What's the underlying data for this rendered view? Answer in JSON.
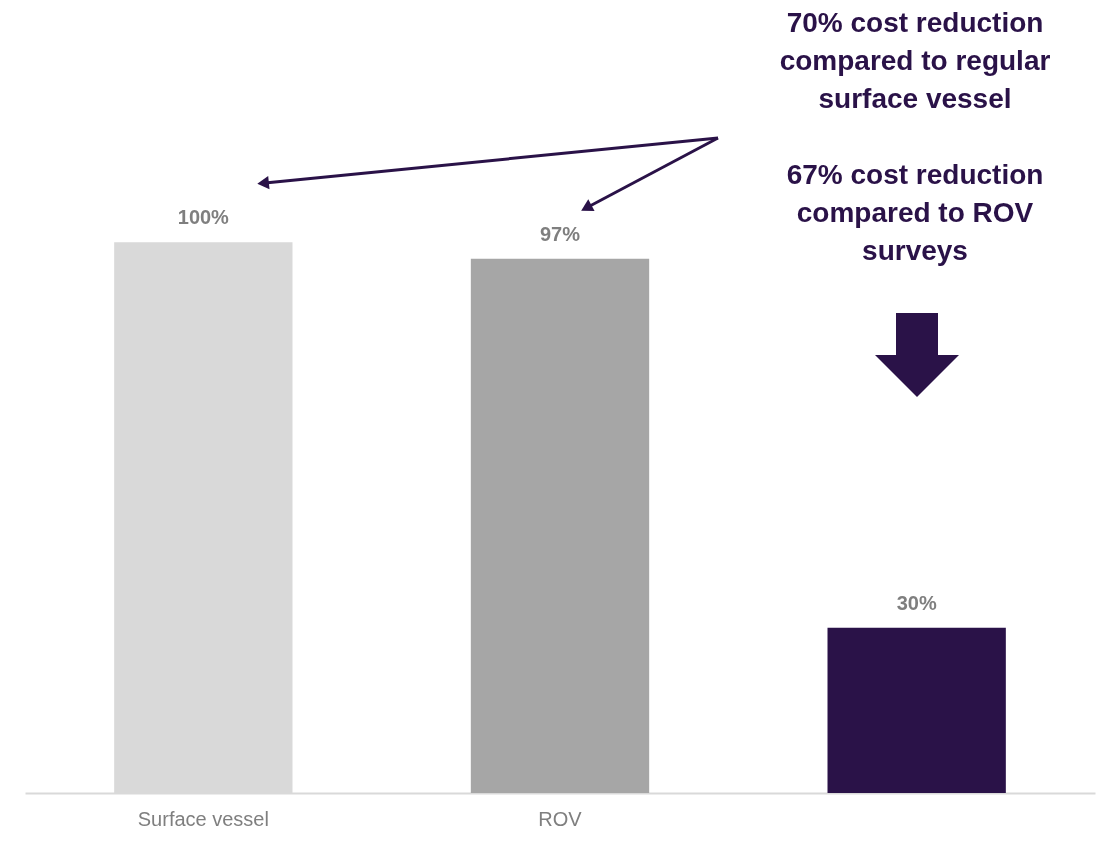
{
  "chart_data": {
    "type": "bar",
    "categories": [
      "Surface vessel",
      "ROV",
      null
    ],
    "values": [
      100,
      97,
      30
    ],
    "colors": [
      "#d9d9d9",
      "#a6a6a6",
      "#2a1248"
    ],
    "value_labels": [
      "100%",
      "97%",
      "30%"
    ],
    "annotations": [
      "70% cost reduction compared to regular surface vessel",
      "67% cost reduction compared to ROV surveys"
    ]
  }
}
